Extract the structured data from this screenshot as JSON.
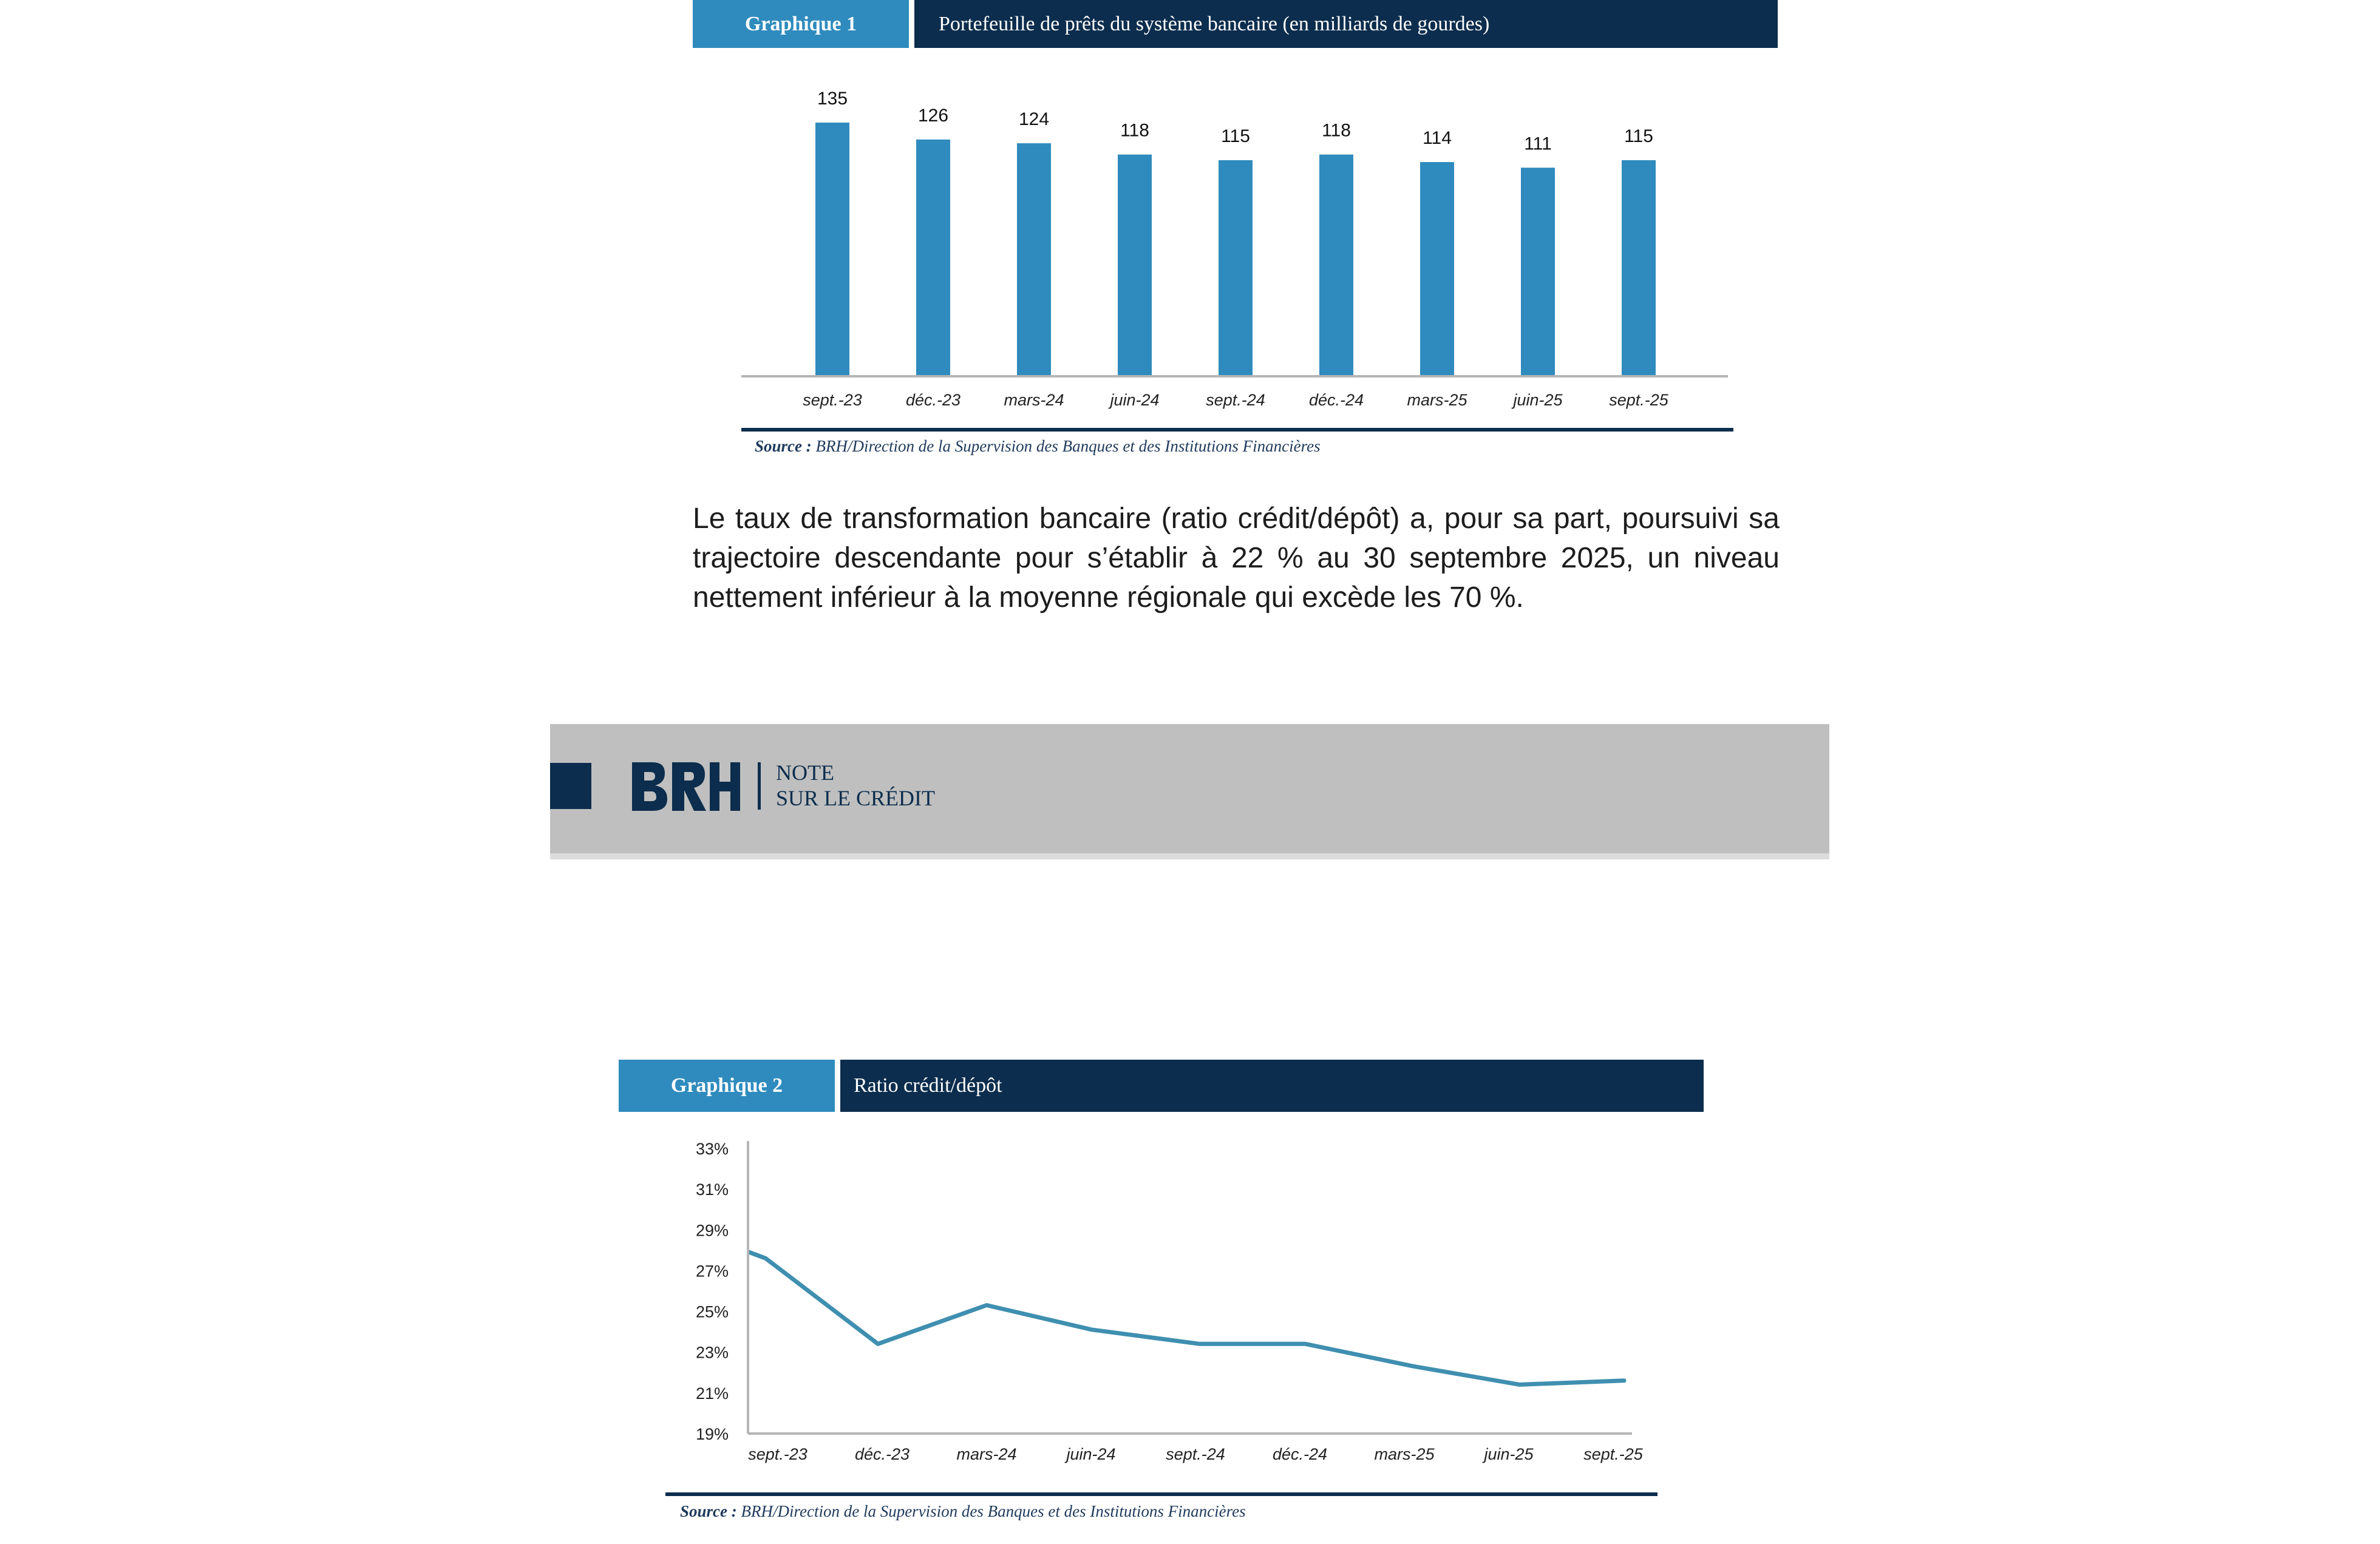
{
  "chart1": {
    "tag": "Graphique 1",
    "title": "Portefeuille de prêts du système bancaire (en milliards de gourdes)",
    "source_label": "Source :",
    "source_text": "BRH/Direction de la Supervision des Banques et des Institutions Financières"
  },
  "paragraph": "Le taux de transformation bancaire (ratio crédit/dépôt) a, pour sa part, poursuivi sa trajectoire descendante pour s’établir à 22 % au 30 septembre 2025, un niveau nettement inférieur à la moyenne régionale qui excède les 70 %.",
  "banner": {
    "logo_text": "BRH",
    "line1": "NOTE",
    "line2": "SUR LE CRÉDIT"
  },
  "chart2": {
    "tag": "Graphique 2",
    "title": "Ratio crédit/dépôt",
    "source_label": "Source :",
    "source_text": "BRH/Direction de la Supervision des Banques et des Institutions Financières"
  },
  "colors": {
    "accent_blue": "#2f8bbd",
    "dark_navy": "#0c2d4d",
    "line_color": "#3f8fb0",
    "banner_gray": "#bfbfbf"
  },
  "chart_data": [
    {
      "type": "bar",
      "title": "Portefeuille de prêts du système bancaire (en milliards de gourdes)",
      "categories": [
        "sept.-23",
        "déc.-23",
        "mars-24",
        "juin-24",
        "sept.-24",
        "déc.-24",
        "mars-25",
        "juin-25",
        "sept.-25"
      ],
      "values": [
        135,
        126,
        124,
        118,
        115,
        118,
        114,
        111,
        115
      ],
      "ylim": [
        0,
        135
      ],
      "grid": false,
      "legend": "none"
    },
    {
      "type": "line",
      "title": "Ratio crédit/dépôt",
      "categories": [
        "sept.-23",
        "déc.-23",
        "mars-24",
        "juin-24",
        "sept.-24",
        "déc.-24",
        "mars-25",
        "juin-25",
        "sept.-25"
      ],
      "x": [
        "sept.-23",
        "",
        "déc.-23",
        "mars-24",
        "juin-24",
        "sept.-24",
        "déc.-24",
        "mars-25",
        "juin-25",
        "sept.-25"
      ],
      "values": [
        27.9,
        27.6,
        23.4,
        25.3,
        24.1,
        23.4,
        23.4,
        22.3,
        21.4,
        21.6
      ],
      "yticks": [
        "33%",
        "31%",
        "29%",
        "27%",
        "25%",
        "23%",
        "21%",
        "19%"
      ],
      "ylim": [
        19,
        33
      ],
      "grid": false,
      "legend": "none"
    }
  ]
}
